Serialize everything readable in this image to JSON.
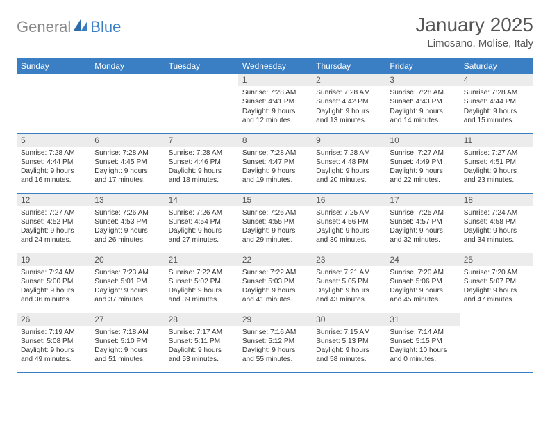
{
  "brand": {
    "part1": "General",
    "part2": "Blue"
  },
  "title": "January 2025",
  "location": "Limosano, Molise, Italy",
  "colors": {
    "accent": "#3a7fc4",
    "header_text": "#ffffff",
    "daynum_bg": "#ececec",
    "text": "#333333",
    "muted": "#555555",
    "logo_gray": "#888888"
  },
  "weekdays": [
    "Sunday",
    "Monday",
    "Tuesday",
    "Wednesday",
    "Thursday",
    "Friday",
    "Saturday"
  ],
  "weeks": [
    [
      null,
      null,
      null,
      {
        "n": "1",
        "sunrise": "7:28 AM",
        "sunset": "4:41 PM",
        "day_h": 9,
        "day_m": 12
      },
      {
        "n": "2",
        "sunrise": "7:28 AM",
        "sunset": "4:42 PM",
        "day_h": 9,
        "day_m": 13
      },
      {
        "n": "3",
        "sunrise": "7:28 AM",
        "sunset": "4:43 PM",
        "day_h": 9,
        "day_m": 14
      },
      {
        "n": "4",
        "sunrise": "7:28 AM",
        "sunset": "4:44 PM",
        "day_h": 9,
        "day_m": 15
      }
    ],
    [
      {
        "n": "5",
        "sunrise": "7:28 AM",
        "sunset": "4:44 PM",
        "day_h": 9,
        "day_m": 16
      },
      {
        "n": "6",
        "sunrise": "7:28 AM",
        "sunset": "4:45 PM",
        "day_h": 9,
        "day_m": 17
      },
      {
        "n": "7",
        "sunrise": "7:28 AM",
        "sunset": "4:46 PM",
        "day_h": 9,
        "day_m": 18
      },
      {
        "n": "8",
        "sunrise": "7:28 AM",
        "sunset": "4:47 PM",
        "day_h": 9,
        "day_m": 19
      },
      {
        "n": "9",
        "sunrise": "7:28 AM",
        "sunset": "4:48 PM",
        "day_h": 9,
        "day_m": 20
      },
      {
        "n": "10",
        "sunrise": "7:27 AM",
        "sunset": "4:49 PM",
        "day_h": 9,
        "day_m": 22
      },
      {
        "n": "11",
        "sunrise": "7:27 AM",
        "sunset": "4:51 PM",
        "day_h": 9,
        "day_m": 23
      }
    ],
    [
      {
        "n": "12",
        "sunrise": "7:27 AM",
        "sunset": "4:52 PM",
        "day_h": 9,
        "day_m": 24
      },
      {
        "n": "13",
        "sunrise": "7:26 AM",
        "sunset": "4:53 PM",
        "day_h": 9,
        "day_m": 26
      },
      {
        "n": "14",
        "sunrise": "7:26 AM",
        "sunset": "4:54 PM",
        "day_h": 9,
        "day_m": 27
      },
      {
        "n": "15",
        "sunrise": "7:26 AM",
        "sunset": "4:55 PM",
        "day_h": 9,
        "day_m": 29
      },
      {
        "n": "16",
        "sunrise": "7:25 AM",
        "sunset": "4:56 PM",
        "day_h": 9,
        "day_m": 30
      },
      {
        "n": "17",
        "sunrise": "7:25 AM",
        "sunset": "4:57 PM",
        "day_h": 9,
        "day_m": 32
      },
      {
        "n": "18",
        "sunrise": "7:24 AM",
        "sunset": "4:58 PM",
        "day_h": 9,
        "day_m": 34
      }
    ],
    [
      {
        "n": "19",
        "sunrise": "7:24 AM",
        "sunset": "5:00 PM",
        "day_h": 9,
        "day_m": 36
      },
      {
        "n": "20",
        "sunrise": "7:23 AM",
        "sunset": "5:01 PM",
        "day_h": 9,
        "day_m": 37
      },
      {
        "n": "21",
        "sunrise": "7:22 AM",
        "sunset": "5:02 PM",
        "day_h": 9,
        "day_m": 39
      },
      {
        "n": "22",
        "sunrise": "7:22 AM",
        "sunset": "5:03 PM",
        "day_h": 9,
        "day_m": 41
      },
      {
        "n": "23",
        "sunrise": "7:21 AM",
        "sunset": "5:05 PM",
        "day_h": 9,
        "day_m": 43
      },
      {
        "n": "24",
        "sunrise": "7:20 AM",
        "sunset": "5:06 PM",
        "day_h": 9,
        "day_m": 45
      },
      {
        "n": "25",
        "sunrise": "7:20 AM",
        "sunset": "5:07 PM",
        "day_h": 9,
        "day_m": 47
      }
    ],
    [
      {
        "n": "26",
        "sunrise": "7:19 AM",
        "sunset": "5:08 PM",
        "day_h": 9,
        "day_m": 49
      },
      {
        "n": "27",
        "sunrise": "7:18 AM",
        "sunset": "5:10 PM",
        "day_h": 9,
        "day_m": 51
      },
      {
        "n": "28",
        "sunrise": "7:17 AM",
        "sunset": "5:11 PM",
        "day_h": 9,
        "day_m": 53
      },
      {
        "n": "29",
        "sunrise": "7:16 AM",
        "sunset": "5:12 PM",
        "day_h": 9,
        "day_m": 55
      },
      {
        "n": "30",
        "sunrise": "7:15 AM",
        "sunset": "5:13 PM",
        "day_h": 9,
        "day_m": 58
      },
      {
        "n": "31",
        "sunrise": "7:14 AM",
        "sunset": "5:15 PM",
        "day_h": 10,
        "day_m": 0
      },
      null
    ]
  ]
}
